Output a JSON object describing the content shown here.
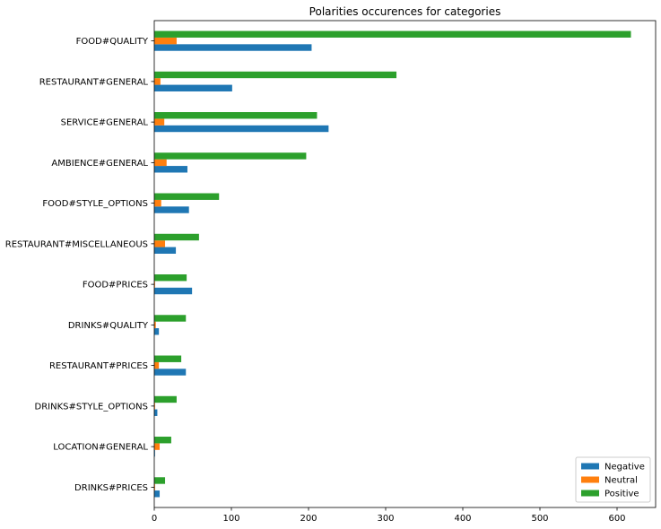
{
  "chart_data": {
    "type": "bar",
    "orientation": "horizontal",
    "title": "Polarities occurences for categories",
    "xlabel": "",
    "ylabel": "",
    "xlim": [
      0,
      650
    ],
    "xticks": [
      0,
      100,
      200,
      300,
      400,
      500,
      600
    ],
    "grid": false,
    "legend_position": "lower right",
    "categories": [
      "FOOD#QUALITY",
      "RESTAURANT#GENERAL",
      "SERVICE#GENERAL",
      "AMBIENCE#GENERAL",
      "FOOD#STYLE_OPTIONS",
      "RESTAURANT#MISCELLANEOUS",
      "FOOD#PRICES",
      "DRINKS#QUALITY",
      "RESTAURANT#PRICES",
      "DRINKS#STYLE_OPTIONS",
      "LOCATION#GENERAL",
      "DRINKS#PRICES"
    ],
    "series": [
      {
        "name": "Negative",
        "color": "#1f77b4",
        "values": [
          204,
          101,
          226,
          43,
          45,
          28,
          49,
          6,
          41,
          4,
          1,
          7
        ]
      },
      {
        "name": "Neutral",
        "color": "#ff7f0e",
        "values": [
          29,
          8,
          13,
          16,
          9,
          14,
          1,
          2,
          6,
          1,
          7,
          1
        ]
      },
      {
        "name": "Positive",
        "color": "#2ca02c",
        "values": [
          618,
          314,
          211,
          197,
          84,
          58,
          42,
          41,
          35,
          29,
          22,
          14
        ]
      }
    ]
  }
}
